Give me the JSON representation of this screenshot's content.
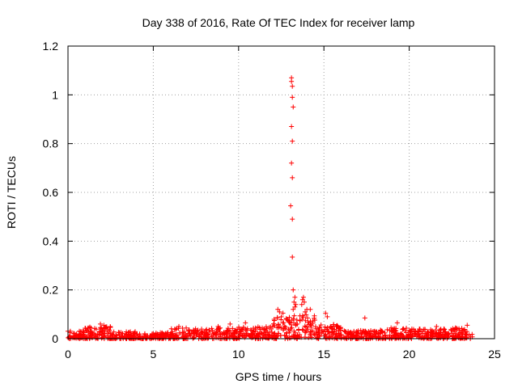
{
  "chart_data": {
    "type": "scatter",
    "title": "Day 338 of 2016, Rate Of TEC Index for receiver lamp",
    "xlabel": "GPS time / hours",
    "ylabel": "ROTI / TECUs",
    "xlim": [
      0,
      25
    ],
    "ylim": [
      0,
      1.2
    ],
    "xticks": [
      "0",
      "5",
      "10",
      "15",
      "20",
      "25"
    ],
    "yticks": [
      "0",
      "0.2",
      "0.4",
      "0.6",
      "0.8",
      "1",
      "1.2"
    ],
    "grid": true,
    "marker": "plus",
    "color": "#ff0000",
    "spike_points": [
      {
        "x": 13.1,
        "y": 1.07
      },
      {
        "x": 13.1,
        "y": 1.055
      },
      {
        "x": 13.15,
        "y": 1.035
      },
      {
        "x": 13.15,
        "y": 0.99
      },
      {
        "x": 13.2,
        "y": 0.95
      },
      {
        "x": 13.1,
        "y": 0.87
      },
      {
        "x": 13.15,
        "y": 0.81
      },
      {
        "x": 13.1,
        "y": 0.72
      },
      {
        "x": 13.15,
        "y": 0.66
      },
      {
        "x": 13.05,
        "y": 0.545
      },
      {
        "x": 13.15,
        "y": 0.49
      },
      {
        "x": 13.15,
        "y": 0.335
      },
      {
        "x": 13.2,
        "y": 0.2
      },
      {
        "x": 13.3,
        "y": 0.17
      },
      {
        "x": 13.25,
        "y": 0.15
      },
      {
        "x": 13.35,
        "y": 0.14
      },
      {
        "x": 13.3,
        "y": 0.13
      },
      {
        "x": 13.2,
        "y": 0.12
      },
      {
        "x": 13.8,
        "y": 0.17
      },
      {
        "x": 13.75,
        "y": 0.16
      },
      {
        "x": 13.85,
        "y": 0.15
      },
      {
        "x": 13.7,
        "y": 0.14
      },
      {
        "x": 14.0,
        "y": 0.12
      },
      {
        "x": 13.9,
        "y": 0.11
      },
      {
        "x": 14.2,
        "y": 0.12
      },
      {
        "x": 12.3,
        "y": 0.12
      },
      {
        "x": 12.4,
        "y": 0.11
      },
      {
        "x": 12.6,
        "y": 0.105
      },
      {
        "x": 12.5,
        "y": 0.09
      },
      {
        "x": 12.8,
        "y": 0.08
      },
      {
        "x": 15.1,
        "y": 0.105
      },
      {
        "x": 15.2,
        "y": 0.09
      },
      {
        "x": 17.4,
        "y": 0.085
      },
      {
        "x": 19.3,
        "y": 0.065
      },
      {
        "x": 10.4,
        "y": 0.065
      },
      {
        "x": 9.5,
        "y": 0.06
      },
      {
        "x": 1.9,
        "y": 0.06
      },
      {
        "x": 2.1,
        "y": 0.055
      },
      {
        "x": 23.4,
        "y": 0.055
      },
      {
        "x": 6.5,
        "y": 0.05
      },
      {
        "x": 21.6,
        "y": 0.05
      },
      {
        "x": 8.8,
        "y": 0.05
      }
    ],
    "baseline_segments": [
      {
        "x0": 0.0,
        "x1": 1.0,
        "ymax": 0.035
      },
      {
        "x0": 1.0,
        "x1": 2.5,
        "ymax": 0.05
      },
      {
        "x0": 2.5,
        "x1": 4.0,
        "ymax": 0.03
      },
      {
        "x0": 4.0,
        "x1": 6.0,
        "ymax": 0.025
      },
      {
        "x0": 6.0,
        "x1": 8.0,
        "ymax": 0.045
      },
      {
        "x0": 8.0,
        "x1": 10.0,
        "ymax": 0.045
      },
      {
        "x0": 10.0,
        "x1": 12.0,
        "ymax": 0.05
      },
      {
        "x0": 12.0,
        "x1": 13.0,
        "ymax": 0.09
      },
      {
        "x0": 13.0,
        "x1": 14.5,
        "ymax": 0.1
      },
      {
        "x0": 14.5,
        "x1": 16.0,
        "ymax": 0.06
      },
      {
        "x0": 16.0,
        "x1": 18.0,
        "ymax": 0.035
      },
      {
        "x0": 18.0,
        "x1": 20.0,
        "ymax": 0.045
      },
      {
        "x0": 20.0,
        "x1": 22.0,
        "ymax": 0.04
      },
      {
        "x0": 22.0,
        "x1": 23.7,
        "ymax": 0.045
      }
    ]
  }
}
